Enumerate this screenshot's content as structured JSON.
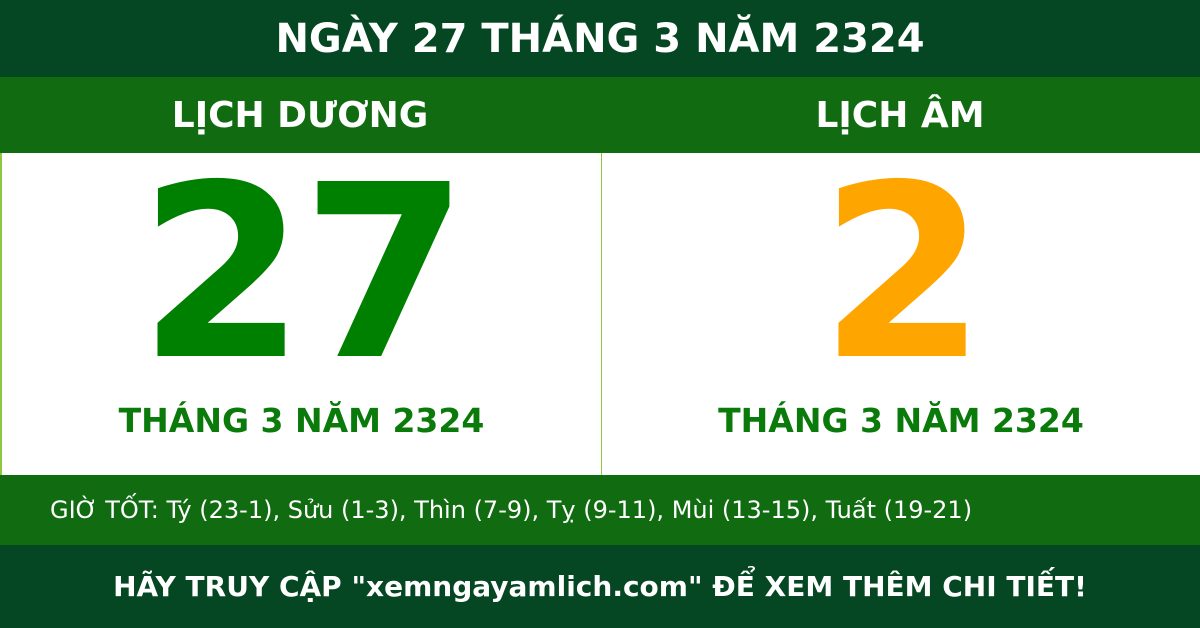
{
  "title": "NGÀY 27 THÁNG 3 NĂM 2324",
  "solar": {
    "label": "LỊCH DƯƠNG",
    "day": "27",
    "month_year": "THÁNG 3 NĂM 2324"
  },
  "lunar": {
    "label": "LỊCH ÂM",
    "day": "2",
    "month_year": "THÁNG 3 NĂM 2324"
  },
  "good_hours": "GIỜ TỐT: Tý (23-1), Sửu (1-3), Thìn (7-9), Tỵ (9-11), Mùi (13-15), Tuất (19-21)",
  "footer": "HÃY TRUY CẬP \"xemngayamlich.com\" ĐỂ XEM THÊM CHI TIẾT!",
  "colors": {
    "dark_green": "#044722",
    "green": "#116b10",
    "solar_day": "#008000",
    "lunar_day": "#ffa500"
  }
}
